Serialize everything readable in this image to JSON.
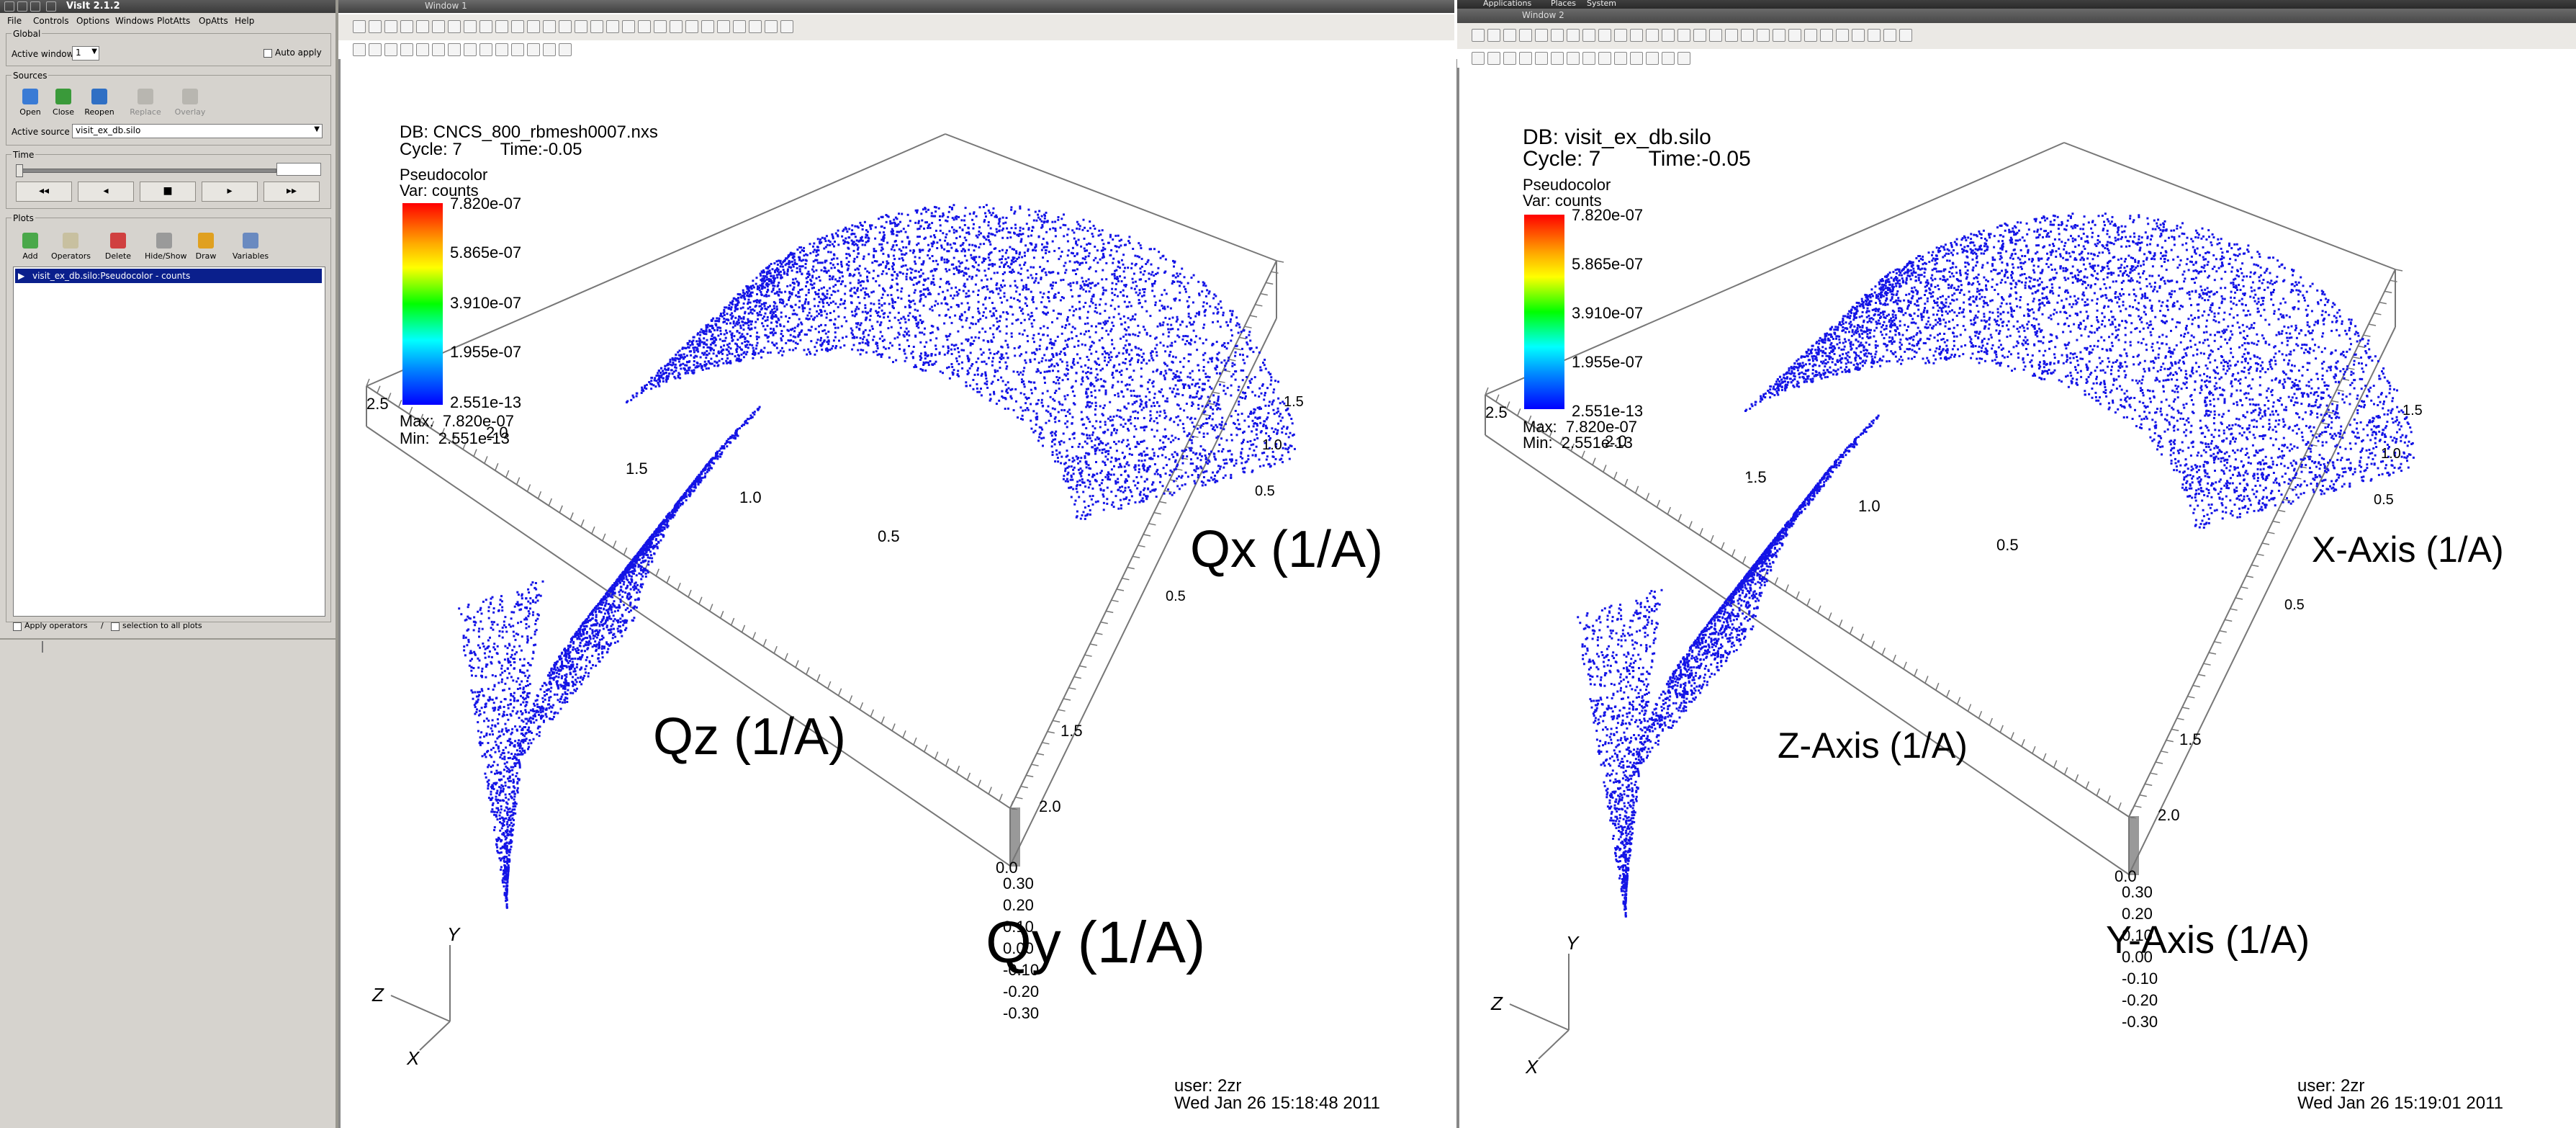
{
  "control_panel": {
    "title": "VisIt 2.1.2",
    "menu": [
      "File",
      "Controls",
      "Options",
      "Windows",
      "PlotAtts",
      "OpAtts",
      "Help"
    ],
    "global": {
      "label": "Global",
      "active_window_label": "Active window",
      "active_window_value": "1",
      "auto_apply_label": "Auto apply"
    },
    "sources": {
      "label": "Sources",
      "buttons": [
        "Open",
        "Close",
        "Reopen",
        "Replace",
        "Overlay"
      ],
      "active_source_label": "Active source",
      "active_source_value": "visit_ex_db.silo"
    },
    "time": {
      "label": "Time"
    },
    "plots": {
      "label": "Plots",
      "buttons": [
        "Add",
        "Operators",
        "Delete",
        "Hide/Show",
        "Draw",
        "Variables"
      ],
      "plot_item": "visit_ex_db.silo:Pseudocolor - counts"
    },
    "apply_operators_label": "Apply operators",
    "apply_selection_label": "selection to all plots"
  },
  "window1": {
    "title": "Window 1",
    "db_line": "DB: CNCS_800_rbmesh0007.nxs",
    "cycle_line": "Cycle: 7        Time:-0.05",
    "legend_title": "Pseudocolor",
    "legend_var": "Var: counts",
    "legend_ticks": [
      "7.820e-07",
      "5.865e-07",
      "3.910e-07",
      "1.955e-07",
      "2.551e-13"
    ],
    "max_line": "Max:  7.820e-07",
    "min_line": "Min:  2.551e-13",
    "x_axis_title": "Qx (1/A)",
    "y_axis_title": "Qy (1/A)",
    "z_axis_title": "Qz (1/A)",
    "z_ticks": [
      "2.5",
      "2.0",
      "1.5",
      "1.0",
      "0.5"
    ],
    "x_ticks_bottom": [
      "2.0",
      "1.5",
      "0.0"
    ],
    "x_ticks_right": [
      "1.5",
      "1.0",
      "0.5",
      "0.5"
    ],
    "y_ticks": [
      "0.30",
      "0.20",
      "0.10",
      "0.00",
      "-0.10",
      "-0.20",
      "-0.30"
    ],
    "triad": {
      "x": "X",
      "y": "Y",
      "z": "Z"
    },
    "user_line": "user: 2zr",
    "date_line": "Wed Jan 26 15:18:48 2011"
  },
  "window2": {
    "title": "Window 2",
    "panel_menu": [
      "Applications",
      "Places",
      "System"
    ],
    "db_line": "DB: visit_ex_db.silo",
    "cycle_line": "Cycle: 7        Time:-0.05",
    "legend_title": "Pseudocolor",
    "legend_var": "Var: counts",
    "legend_ticks": [
      "7.820e-07",
      "5.865e-07",
      "3.910e-07",
      "1.955e-07",
      "2.551e-13"
    ],
    "max_line": "Max:  7.820e-07",
    "min_line": "Min:  2.551e-13",
    "x_axis_title": "X-Axis (1/A)",
    "y_axis_title": "Y-Axis (1/A)",
    "z_axis_title": "Z-Axis (1/A)",
    "z_ticks": [
      "2.5",
      "2.0",
      "1.5",
      "1.0",
      "0.5"
    ],
    "x_ticks_bottom": [
      "2.0",
      "1.5",
      "0.0"
    ],
    "x_ticks_right": [
      "1.5",
      "1.0",
      "0.5",
      "0.5"
    ],
    "y_ticks": [
      "0.30",
      "0.20",
      "0.10",
      "0.00",
      "-0.10",
      "-0.20",
      "-0.30"
    ],
    "triad": {
      "x": "X",
      "y": "Y",
      "z": "Z"
    },
    "user_line": "user: 2zr",
    "date_line": "Wed Jan 26 15:19:01 2011"
  },
  "colors": {
    "point_cloud": "#1414e6",
    "legend_top": "#ff0000",
    "legend_mid": "#00ff00",
    "legend_bottom": "#0000ff",
    "panel_bg": "#d6d3ce",
    "selection": "#0a1f8c"
  }
}
